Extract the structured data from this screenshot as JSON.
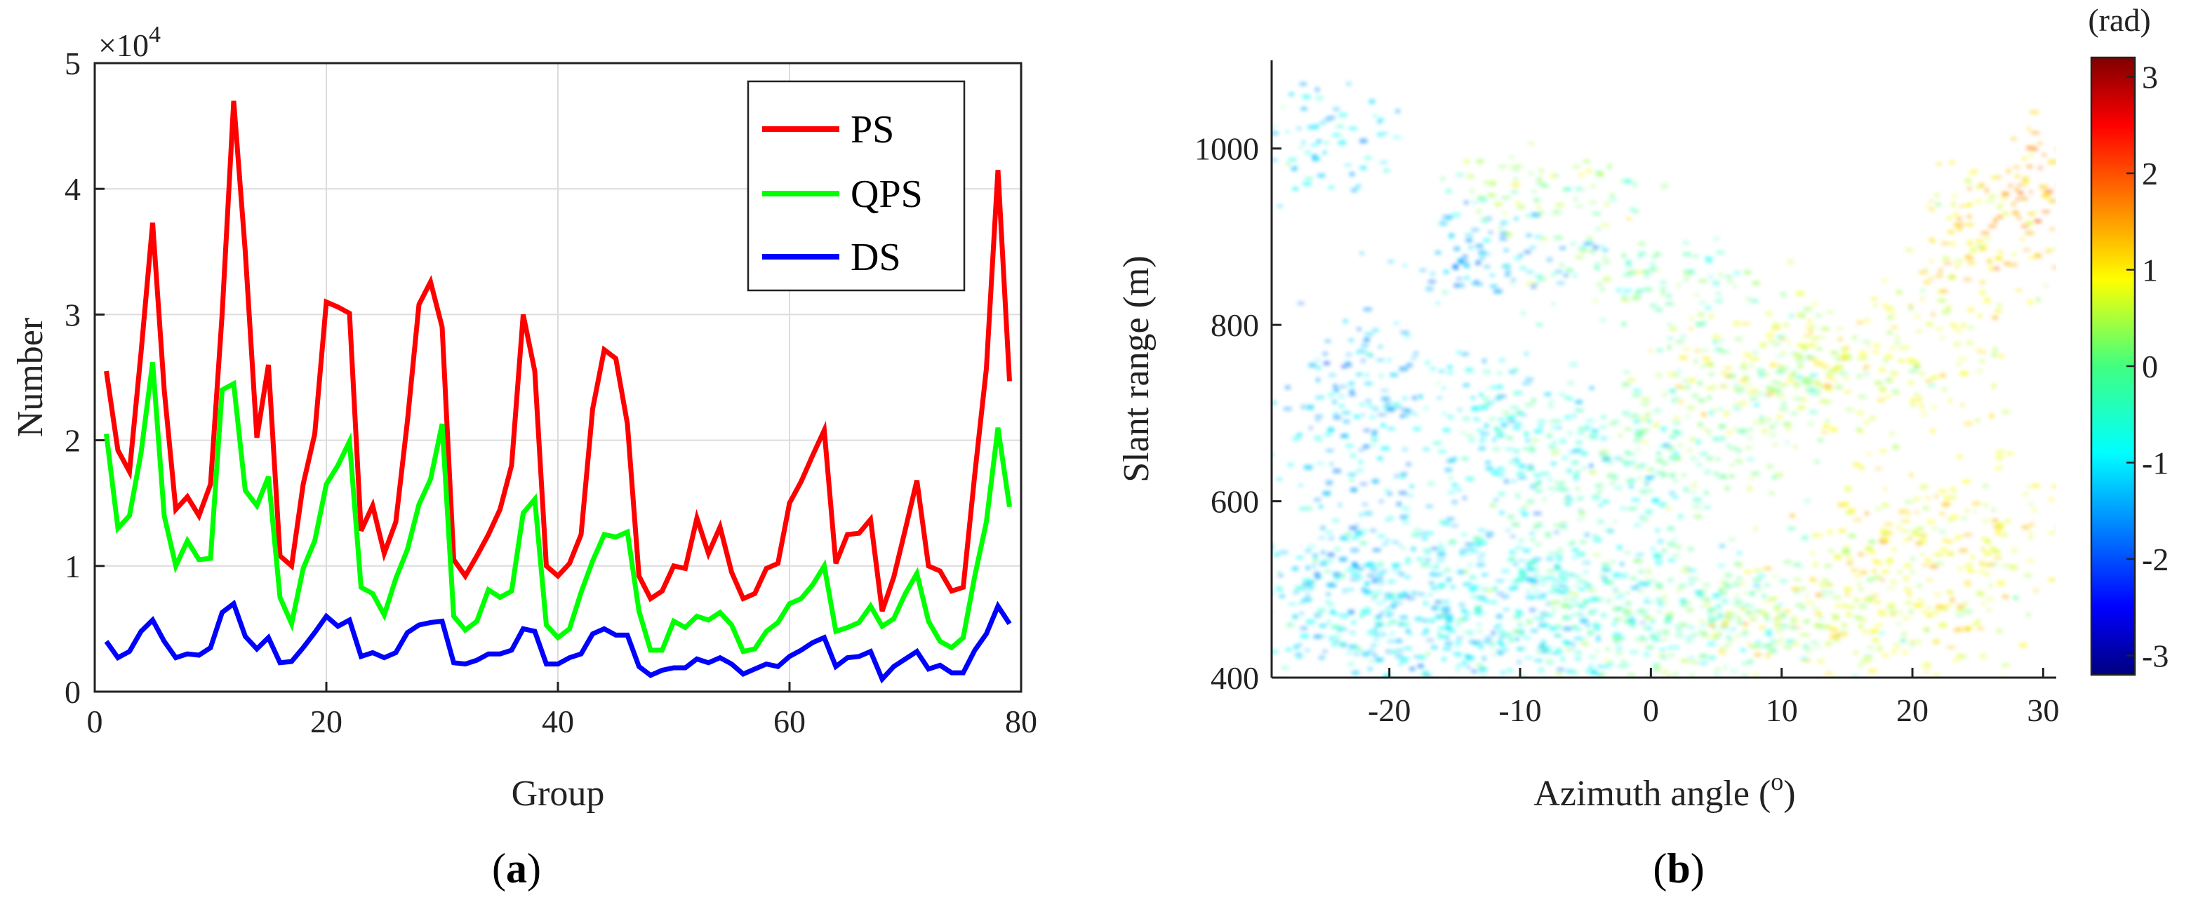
{
  "chart_data": [
    {
      "type": "line",
      "panel_label": "a",
      "xlabel": "Group",
      "ylabel": "Number",
      "y_multiplier": "×10",
      "y_multiplier_exp": "4",
      "xlim": [
        0,
        80
      ],
      "ylim": [
        0,
        50000
      ],
      "xticks": [
        0,
        20,
        40,
        60,
        80
      ],
      "yticks": [
        0,
        10000,
        20000,
        30000,
        40000,
        50000
      ],
      "ytick_labels": [
        "0",
        "1",
        "2",
        "3",
        "4",
        "5"
      ],
      "grid": true,
      "legend_position": "top-right",
      "x": [
        1,
        2,
        3,
        4,
        5,
        6,
        7,
        8,
        9,
        10,
        11,
        12,
        13,
        14,
        15,
        16,
        17,
        18,
        19,
        20,
        21,
        22,
        23,
        24,
        25,
        26,
        27,
        28,
        29,
        30,
        31,
        32,
        33,
        34,
        35,
        36,
        37,
        38,
        39,
        40,
        41,
        42,
        43,
        44,
        45,
        46,
        47,
        48,
        49,
        50,
        51,
        52,
        53,
        54,
        55,
        56,
        57,
        58,
        59,
        60,
        61,
        62,
        63,
        64,
        65,
        66,
        67,
        68,
        69,
        70,
        71,
        72,
        73,
        74,
        75,
        76,
        77,
        78,
        79
      ],
      "series": [
        {
          "name": "PS",
          "color": "#ff0000",
          "values": [
            25500,
            19200,
            17500,
            27000,
            37300,
            24000,
            14500,
            15500,
            14000,
            16500,
            30000,
            47000,
            35000,
            20200,
            26000,
            10800,
            10000,
            16500,
            20500,
            31000,
            30600,
            30100,
            12800,
            14800,
            11000,
            13500,
            21500,
            30800,
            32600,
            29000,
            10500,
            9200,
            10800,
            12500,
            14500,
            18000,
            30000,
            25500,
            10000,
            9200,
            10200,
            12500,
            22500,
            27200,
            26500,
            21300,
            9200,
            7400,
            8000,
            10000,
            9800,
            13800,
            11000,
            13100,
            9500,
            7400,
            7800,
            9800,
            10200,
            15000,
            16700,
            18800,
            20800,
            10200,
            12500,
            12600,
            13700,
            6400,
            9100,
            12900,
            16800,
            10000,
            9600,
            8000,
            8300,
            17300,
            25700,
            41500,
            24700
          ]
        },
        {
          "name": "QPS",
          "color": "#00ff00",
          "values": [
            20500,
            13000,
            14000,
            19000,
            26200,
            14000,
            10000,
            12000,
            10500,
            10600,
            24000,
            24500,
            16000,
            14800,
            17100,
            7500,
            5400,
            9800,
            12000,
            16500,
            18000,
            19900,
            8300,
            7800,
            6100,
            9000,
            11300,
            14900,
            16900,
            21300,
            6000,
            4900,
            5600,
            8100,
            7500,
            8000,
            14200,
            15300,
            5300,
            4300,
            5000,
            7900,
            10400,
            12500,
            12300,
            12700,
            6400,
            3300,
            3300,
            5600,
            5100,
            6000,
            5700,
            6300,
            5300,
            3200,
            3400,
            4800,
            5500,
            7000,
            7400,
            8500,
            10000,
            4800,
            5100,
            5500,
            6800,
            5200,
            5800,
            7800,
            9400,
            5600,
            4000,
            3500,
            4300,
            9200,
            13500,
            21000,
            14700
          ]
        },
        {
          "name": "DS",
          "color": "#0000ff",
          "values": [
            4000,
            2700,
            3200,
            4800,
            5700,
            4000,
            2700,
            3000,
            2900,
            3500,
            6300,
            7000,
            4400,
            3400,
            4300,
            2300,
            2400,
            3500,
            4700,
            6000,
            5200,
            5700,
            2800,
            3100,
            2700,
            3100,
            4700,
            5300,
            5500,
            5600,
            2300,
            2200,
            2500,
            3000,
            3000,
            3300,
            5000,
            4800,
            2200,
            2200,
            2700,
            3000,
            4600,
            5000,
            4500,
            4500,
            2000,
            1300,
            1700,
            1900,
            1900,
            2600,
            2300,
            2700,
            2200,
            1400,
            1800,
            2200,
            2000,
            2800,
            3300,
            3900,
            4300,
            2000,
            2700,
            2800,
            3200,
            1000,
            2000,
            2600,
            3200,
            1800,
            2100,
            1500,
            1500,
            3300,
            4600,
            6800,
            5400
          ]
        }
      ]
    },
    {
      "type": "heatmap",
      "panel_label": "b",
      "xlabel_main": "Azimuth angle (",
      "xlabel_sup": "o",
      "xlabel_close": ")",
      "ylabel": "Slant range (m)",
      "xlim": [
        -29,
        31
      ],
      "ylim": [
        400,
        1100
      ],
      "xticks": [
        -20,
        -10,
        0,
        10,
        20,
        30
      ],
      "yticks": [
        400,
        600,
        800,
        1000
      ],
      "colorbar": {
        "unit_label": "(rad)",
        "range": [
          -3.2,
          3.2
        ],
        "ticks": [
          3,
          2,
          1,
          0,
          -1,
          -2,
          -3
        ],
        "colormap": "jet"
      },
      "clusters": [
        {
          "x": -22,
          "y": 500,
          "value": -1.0,
          "rx": 7,
          "ry": 85
        },
        {
          "x": -13,
          "y": 470,
          "value": -0.9,
          "rx": 8,
          "ry": 60
        },
        {
          "x": -5,
          "y": 480,
          "value": -0.5,
          "rx": 7,
          "ry": 70
        },
        {
          "x": 3,
          "y": 470,
          "value": -0.2,
          "rx": 7,
          "ry": 60
        },
        {
          "x": -22,
          "y": 720,
          "value": -1.1,
          "rx": 4,
          "ry": 60
        },
        {
          "x": -12,
          "y": 700,
          "value": -0.8,
          "rx": 4,
          "ry": 50
        },
        {
          "x": -5,
          "y": 640,
          "value": -0.5,
          "rx": 5,
          "ry": 50
        },
        {
          "x": 3,
          "y": 660,
          "value": -0.1,
          "rx": 5,
          "ry": 40
        },
        {
          "x": 8,
          "y": 740,
          "value": 0.0,
          "rx": 6,
          "ry": 40
        },
        {
          "x": -12,
          "y": 880,
          "value": -1.2,
          "rx": 5,
          "ry": 30
        },
        {
          "x": 0,
          "y": 860,
          "value": -0.2,
          "rx": 6,
          "ry": 30
        },
        {
          "x": 15,
          "y": 760,
          "value": 0.6,
          "rx": 8,
          "ry": 50
        },
        {
          "x": 22,
          "y": 560,
          "value": 0.8,
          "rx": 6,
          "ry": 60
        },
        {
          "x": 16,
          "y": 470,
          "value": 0.6,
          "rx": 8,
          "ry": 50
        },
        {
          "x": 29,
          "y": 960,
          "value": 1.4,
          "rx": 2,
          "ry": 50
        },
        {
          "x": 24,
          "y": 900,
          "value": 0.9,
          "rx": 3,
          "ry": 60
        },
        {
          "x": -25,
          "y": 1020,
          "value": -0.9,
          "rx": 3,
          "ry": 40
        },
        {
          "x": -8,
          "y": 950,
          "value": 0.1,
          "rx": 5,
          "ry": 30
        }
      ]
    }
  ]
}
